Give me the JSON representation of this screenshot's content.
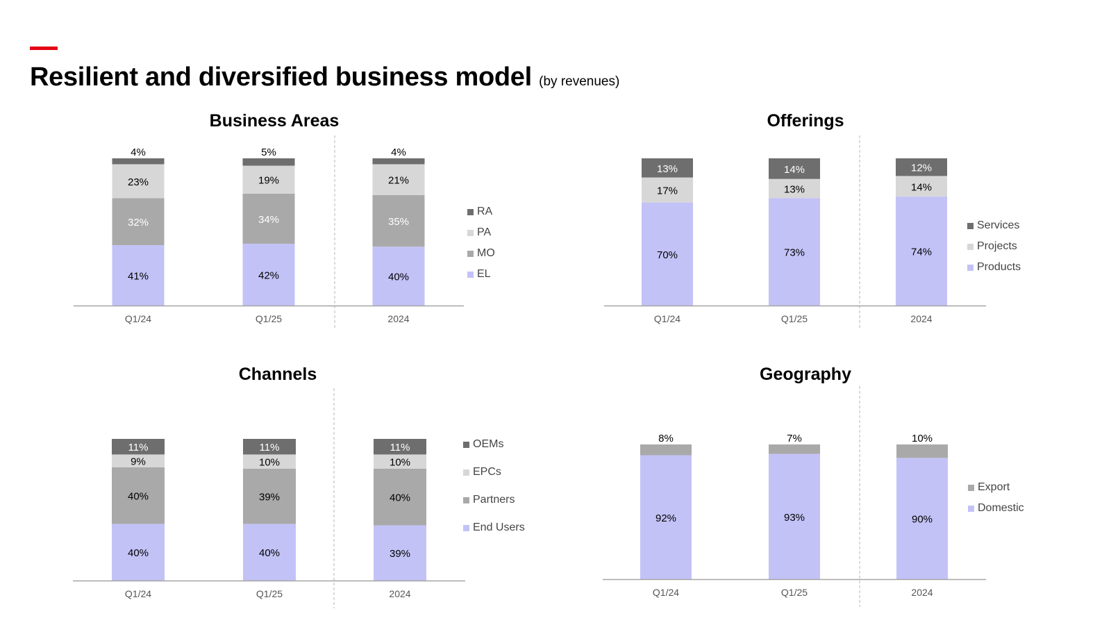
{
  "header": {
    "title": "Resilient and diversified business model",
    "subtitle": "(by revenues)",
    "accent_color": "#e30613"
  },
  "colors": {
    "darkest": "#6e6e6e",
    "light": "#d7d7d7",
    "mid": "#a9a9a9",
    "lavender": "#c3c2f7",
    "axis": "#a6a6a6"
  },
  "chart_data": [
    {
      "id": "business-areas",
      "type": "bar",
      "stacked": true,
      "title": "Business Areas",
      "categories": [
        "Q1/24",
        "Q1/25",
        "2024"
      ],
      "series": [
        {
          "name": "EL",
          "values": [
            41,
            42,
            40
          ],
          "color": "#c3c2f7",
          "label_color": "#000000",
          "labels": [
            "41%",
            "42%",
            "40%"
          ]
        },
        {
          "name": "MO",
          "values": [
            32,
            34,
            35
          ],
          "color": "#a9a9a9",
          "label_color": "#ffffff",
          "labels": [
            "32%",
            "34%",
            "35%"
          ]
        },
        {
          "name": "PA",
          "values": [
            23,
            19,
            21
          ],
          "color": "#d7d7d7",
          "label_color": "#000000",
          "labels": [
            "23%",
            "19%",
            "21%"
          ]
        },
        {
          "name": "RA",
          "values": [
            4,
            5,
            4
          ],
          "color": "#6e6e6e",
          "label_color": "#000000",
          "labels": [
            "4%",
            "5%",
            "4%"
          ],
          "label_above": true
        }
      ],
      "legend_order": [
        "RA",
        "PA",
        "MO",
        "EL"
      ],
      "divider_after_index": 1,
      "ylim": [
        0,
        100
      ]
    },
    {
      "id": "offerings",
      "type": "bar",
      "stacked": true,
      "title": "Offerings",
      "categories": [
        "Q1/24",
        "Q1/25",
        "2024"
      ],
      "series": [
        {
          "name": "Products",
          "values": [
            70,
            73,
            74
          ],
          "color": "#c3c2f7",
          "label_color": "#000000",
          "labels": [
            "70%",
            "73%",
            "74%"
          ]
        },
        {
          "name": "Projects",
          "values": [
            17,
            13,
            14
          ],
          "color": "#d7d7d7",
          "label_color": "#000000",
          "labels": [
            "17%",
            "13%",
            "14%"
          ]
        },
        {
          "name": "Services",
          "values": [
            13,
            14,
            12
          ],
          "color": "#6e6e6e",
          "label_color": "#ffffff",
          "labels": [
            "13%",
            "14%",
            "12%"
          ]
        }
      ],
      "legend_order": [
        "Services",
        "Projects",
        "Products"
      ],
      "divider_after_index": 1,
      "ylim": [
        0,
        100
      ]
    },
    {
      "id": "channels",
      "type": "bar",
      "stacked": true,
      "title": "Channels",
      "categories": [
        "Q1/24",
        "Q1/25",
        "2024"
      ],
      "series": [
        {
          "name": "End Users",
          "values": [
            40,
            40,
            39
          ],
          "color": "#c3c2f7",
          "label_color": "#000000",
          "labels": [
            "40%",
            "40%",
            "39%"
          ]
        },
        {
          "name": "Partners",
          "values": [
            40,
            39,
            40
          ],
          "color": "#a9a9a9",
          "label_color": "#000000",
          "labels": [
            "40%",
            "39%",
            "40%"
          ]
        },
        {
          "name": "EPCs",
          "values": [
            9,
            10,
            10
          ],
          "color": "#d7d7d7",
          "label_color": "#000000",
          "labels": [
            "9%",
            "10%",
            "10%"
          ]
        },
        {
          "name": "OEMs",
          "values": [
            11,
            11,
            11
          ],
          "color": "#6e6e6e",
          "label_color": "#ffffff",
          "labels": [
            "11%",
            "11%",
            "11%"
          ]
        }
      ],
      "legend_order": [
        "OEMs",
        "EPCs",
        "Partners",
        "End Users"
      ],
      "divider_after_index": 1,
      "ylim": [
        0,
        100
      ]
    },
    {
      "id": "geography",
      "type": "bar",
      "stacked": true,
      "title": "Geography",
      "categories": [
        "Q1/24",
        "Q1/25",
        "2024"
      ],
      "series": [
        {
          "name": "Domestic",
          "values": [
            92,
            93,
            90
          ],
          "color": "#c3c2f7",
          "label_color": "#000000",
          "labels": [
            "92%",
            "93%",
            "90%"
          ]
        },
        {
          "name": "Export",
          "values": [
            8,
            7,
            10
          ],
          "color": "#a9a9a9",
          "label_color": "#000000",
          "labels": [
            "8%",
            "7%",
            "10%"
          ],
          "label_above": true
        }
      ],
      "legend_order": [
        "Export",
        "Domestic"
      ],
      "divider_after_index": 1,
      "ylim": [
        0,
        100
      ]
    }
  ]
}
